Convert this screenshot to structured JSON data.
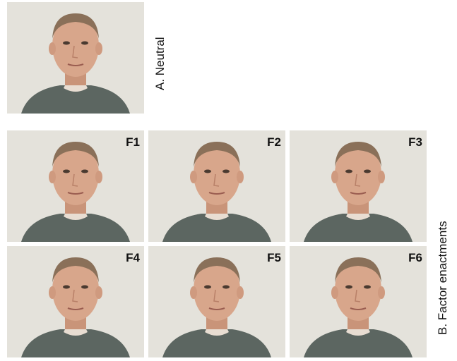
{
  "neutral": {
    "label": "A. Neutral"
  },
  "enactments": {
    "label": "B. Factor enactments",
    "panels": [
      "F1",
      "F2",
      "F3",
      "F4",
      "F5",
      "F6"
    ]
  }
}
